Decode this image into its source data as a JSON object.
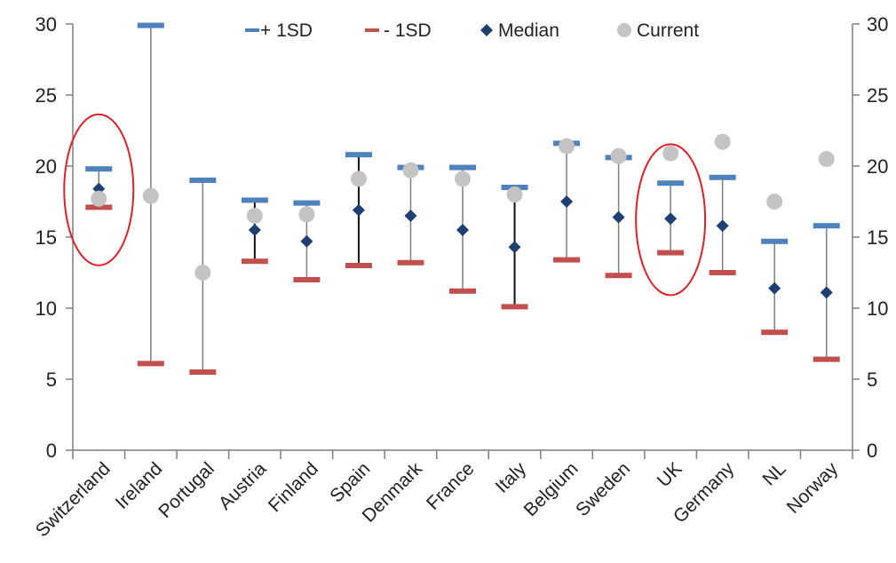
{
  "chart_data": {
    "type": "scatter",
    "categories": [
      "Switzerland",
      "Ireland",
      "Portugal",
      "Austria",
      "Finland",
      "Spain",
      "Denmark",
      "France",
      "Italy",
      "Belgium",
      "Sweden",
      "UK",
      "Germany",
      "NL",
      "Norway"
    ],
    "series": [
      {
        "name": "+ 1SD",
        "values": [
          19.8,
          29.9,
          19.0,
          17.6,
          17.4,
          20.8,
          19.9,
          19.9,
          18.5,
          21.6,
          20.6,
          18.8,
          19.2,
          14.7,
          15.8
        ]
      },
      {
        "name": "- 1SD",
        "values": [
          17.1,
          6.1,
          5.5,
          13.3,
          12.0,
          13.0,
          13.2,
          11.2,
          10.1,
          13.4,
          12.3,
          13.9,
          12.5,
          8.3,
          6.4
        ]
      },
      {
        "name": "Median",
        "values": [
          18.4,
          18.0,
          12.5,
          15.5,
          14.7,
          16.9,
          16.5,
          15.5,
          14.3,
          17.5,
          16.4,
          16.3,
          15.8,
          11.4,
          11.1
        ]
      },
      {
        "name": "Current",
        "values": [
          17.7,
          17.9,
          12.5,
          16.5,
          16.6,
          19.1,
          19.7,
          19.1,
          18.0,
          21.4,
          20.7,
          20.9,
          21.7,
          17.5,
          20.5
        ]
      }
    ],
    "highlighted": [
      "Switzerland",
      "UK"
    ],
    "ylim": [
      0,
      30
    ],
    "yticks": [
      0,
      5,
      10,
      15,
      20,
      25,
      30
    ],
    "ytick_labels": [
      "0",
      "5",
      "10",
      "15",
      "20",
      "25",
      "30"
    ],
    "secondary_y_axis": true,
    "legend_position": "top",
    "grid": false,
    "colors": {
      "plus_sd": "#4f81bd",
      "minus_sd": "#c0504d",
      "median": "#1f3f73",
      "current": "#c4c4c4",
      "highlight": "#e0212a",
      "range_line": "#7f7f7f",
      "range_line_dark": "#111111",
      "axis": "#7f7f7f"
    }
  }
}
